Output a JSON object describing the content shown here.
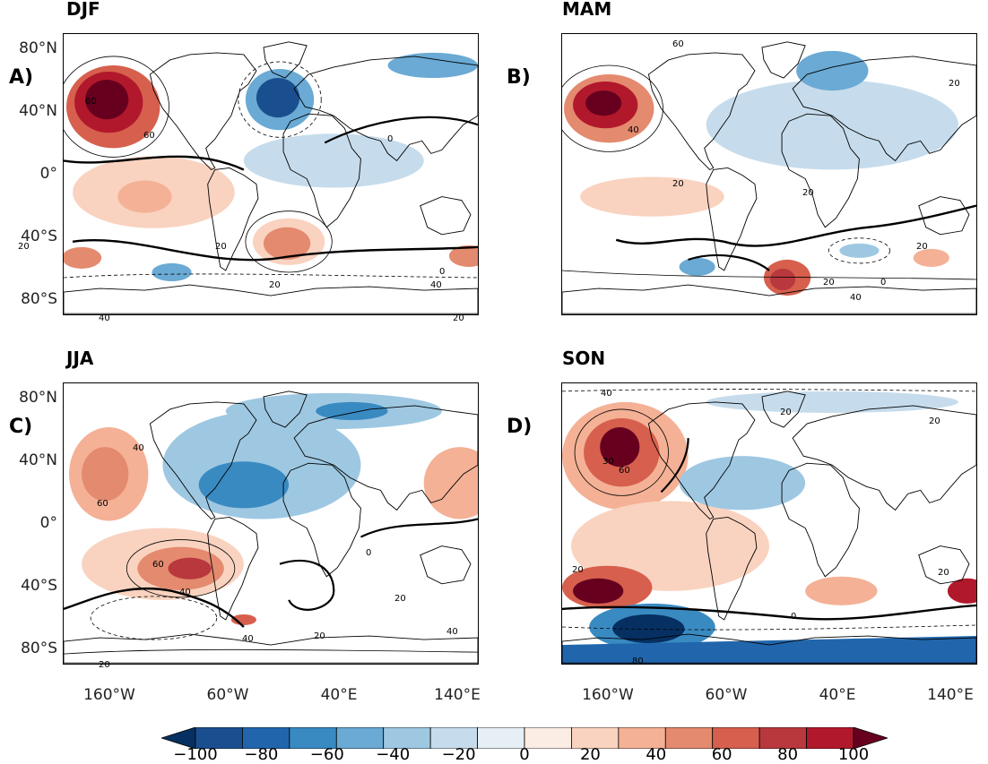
{
  "panels": [
    {
      "season": "DJF",
      "letter": "A)"
    },
    {
      "season": "MAM",
      "letter": "B)"
    },
    {
      "season": "JJA",
      "letter": "C)"
    },
    {
      "season": "SON",
      "letter": "D)"
    }
  ],
  "lat_labels": [
    "80°N",
    "40°N",
    "0°",
    "40°S",
    "80°S"
  ],
  "lon_labels": [
    "160°W",
    "60°W",
    "40°E",
    "140°E"
  ],
  "contour_labels": {
    "djf": [
      "60",
      "60",
      "20",
      "20",
      "0",
      "0",
      "20",
      "40",
      "40",
      "20"
    ],
    "mam": [
      "60",
      "40",
      "20",
      "20",
      "20",
      "0",
      "40",
      "20",
      "20"
    ],
    "jja": [
      "60",
      "40",
      "60",
      "40",
      "40",
      "0",
      "20",
      "40",
      "20",
      "20"
    ],
    "son": [
      "40",
      "60",
      "30",
      "20",
      "20",
      "0",
      "20",
      "80",
      "20"
    ]
  },
  "colorbar": {
    "ticks": [
      "−100",
      "−80",
      "−60",
      "−40",
      "−20",
      "0",
      "20",
      "40",
      "60",
      "80",
      "100"
    ],
    "colors": [
      "#053061",
      "#1a4f8f",
      "#2166ac",
      "#3a8ac2",
      "#6aaad4",
      "#9ec8e2",
      "#c6dcec",
      "#e6eff6",
      "#fbece4",
      "#f9d3c0",
      "#f4b196",
      "#e48a6f",
      "#d6604d",
      "#b8383e",
      "#b2182b",
      "#67001f"
    ]
  }
}
